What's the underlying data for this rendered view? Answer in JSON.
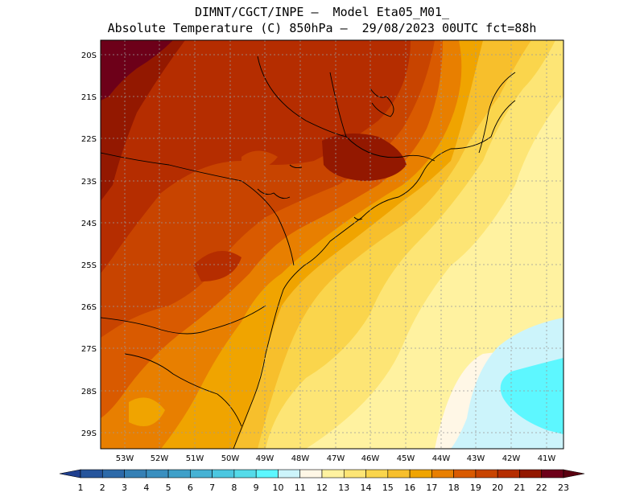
{
  "header": {
    "line1": "DIMNT/CGCT/INPE –  Model Eta05_M01_",
    "line2": "Absolute Temperature (C) 850hPa –  29/08/2023 00UTC fct=88h"
  },
  "map": {
    "lat_labels": [
      "20S",
      "21S",
      "22S",
      "23S",
      "24S",
      "25S",
      "26S",
      "27S",
      "28S",
      "29S"
    ],
    "lon_labels": [
      "53W",
      "52W",
      "51W",
      "50W",
      "49W",
      "48W",
      "47W",
      "46W",
      "45W",
      "44W",
      "43W",
      "42W",
      "41W"
    ]
  },
  "colorbar": {
    "labels": [
      "1",
      "2",
      "3",
      "4",
      "5",
      "6",
      "7",
      "8",
      "9",
      "10",
      "11",
      "12",
      "13",
      "14",
      "15",
      "16",
      "17",
      "18",
      "19",
      "20",
      "21",
      "22",
      "23"
    ],
    "colors": [
      "#1f3f8f",
      "#26559c",
      "#2d6aa9",
      "#3580b5",
      "#3a8fbf",
      "#3fa0c9",
      "#46b2d4",
      "#4cc7e0",
      "#55dbe9",
      "#5df7ff",
      "#ccf4fb",
      "#fff7e6",
      "#fff2a0",
      "#fde575",
      "#fad54c",
      "#f7bf2c",
      "#f0a400",
      "#e87f00",
      "#d95a00",
      "#c84400",
      "#b52d00",
      "#931800",
      "#6d0019",
      "#5a0010"
    ]
  }
}
